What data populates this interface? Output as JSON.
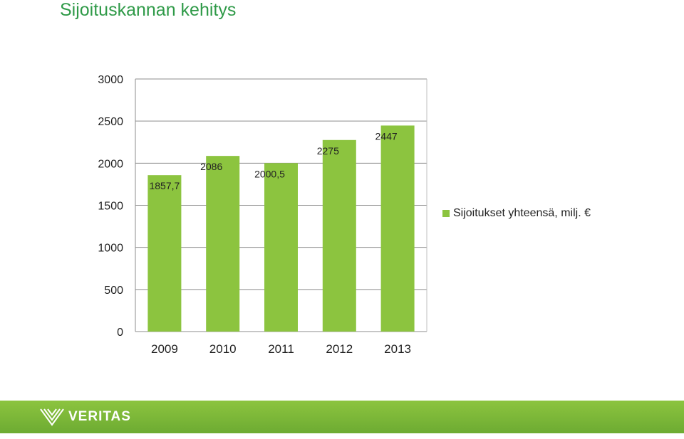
{
  "page": {
    "title": "Sijoituskannan kehitys"
  },
  "colors": {
    "bar": "#8cc43f",
    "title": "#2f9a48",
    "footer": "#7cb83a"
  },
  "footer": {
    "logo_text": "VERITAS",
    "logo_icon": "veritas-v-icon"
  },
  "chart_data": {
    "type": "bar",
    "categories": [
      "2009",
      "2010",
      "2011",
      "2012",
      "2013"
    ],
    "series": [
      {
        "name": "Sijoitukset yhteensä, milj. €",
        "values": [
          1857.7,
          2086,
          2000.5,
          2275,
          2447
        ],
        "labels": [
          "1857,7",
          "2086",
          "2000,5",
          "2275",
          "2447"
        ]
      }
    ],
    "ylim": [
      0,
      3000
    ],
    "yticks": [
      0,
      500,
      1000,
      1500,
      2000,
      2500,
      3000
    ],
    "grid": true,
    "legend": "right"
  }
}
